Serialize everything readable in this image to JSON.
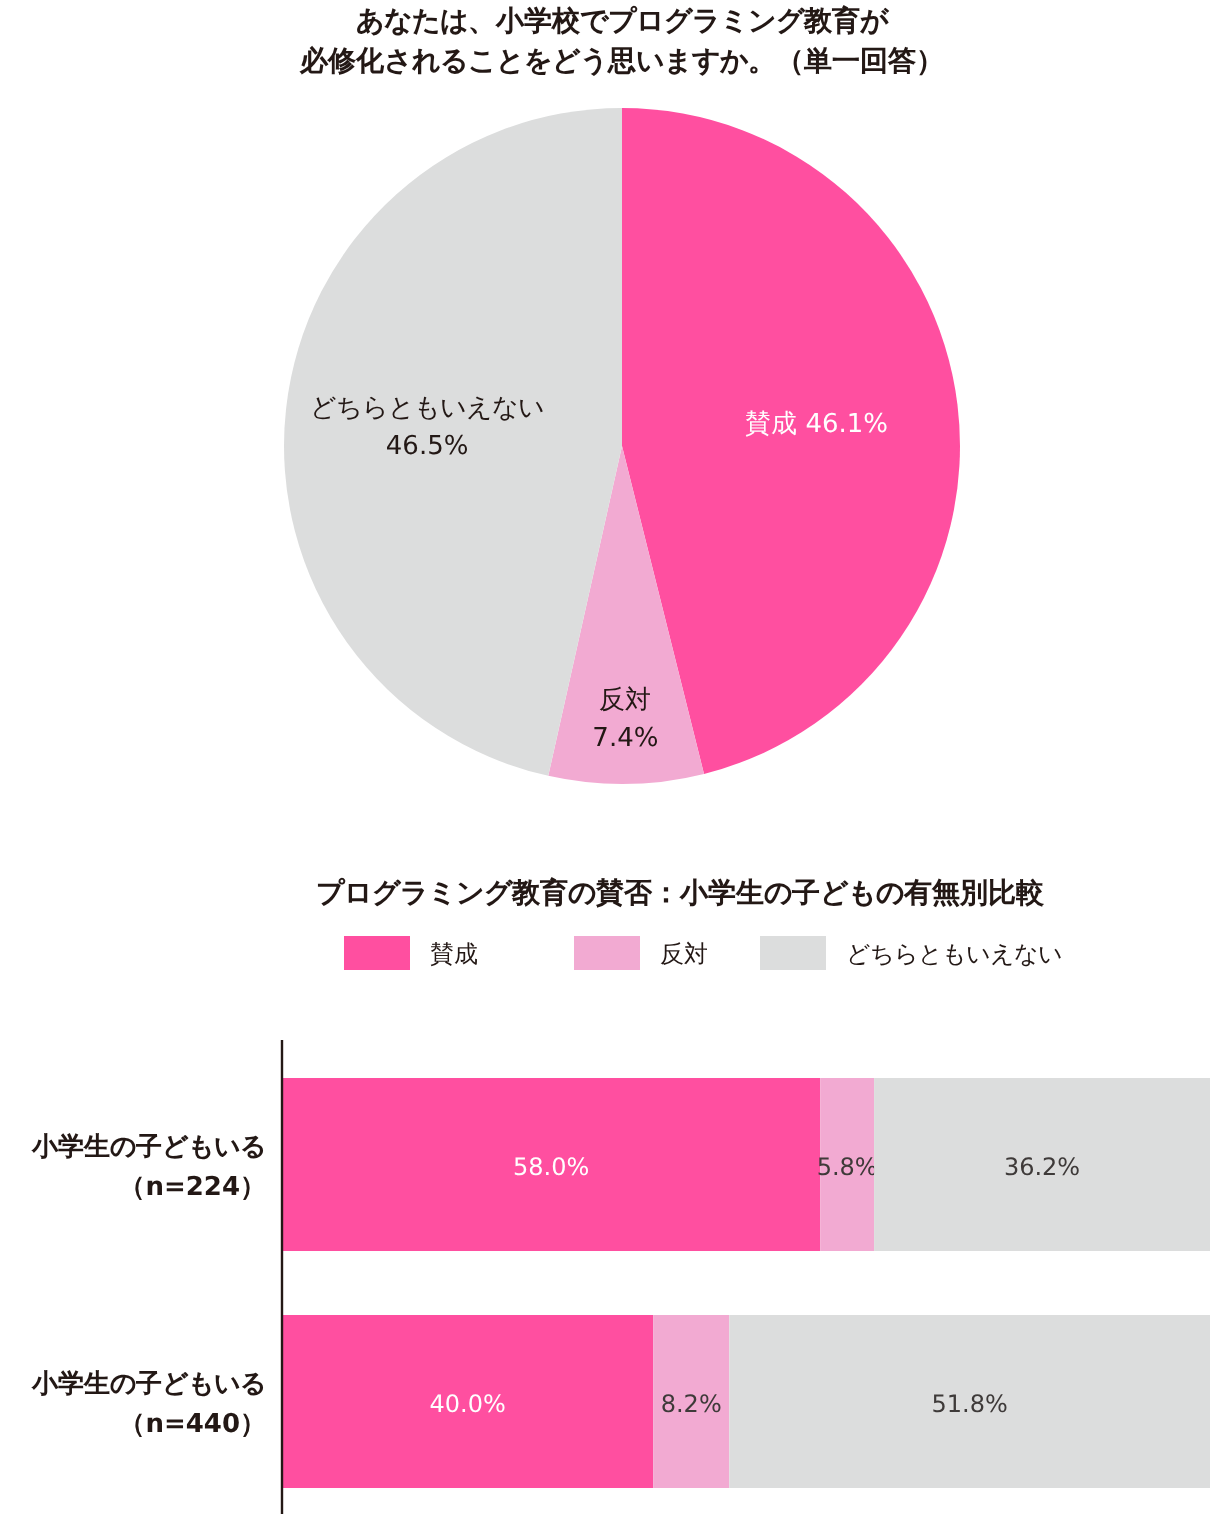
{
  "chart_data": [
    {
      "type": "pie",
      "title": "あなたは、小学校でプログラミング教育が必修化されることをどう思いますか。（単一回答）",
      "categories": [
        "賛成",
        "反対",
        "どちらともいえない"
      ],
      "values": [
        46.1,
        7.4,
        46.5
      ],
      "value_labels": [
        "46.1%",
        "7.4%",
        "46.5%"
      ],
      "colors": [
        "#ff4fa0",
        "#f2aad2",
        "#dcdddd"
      ]
    },
    {
      "type": "bar",
      "orientation": "horizontal",
      "stacked": true,
      "legend": "top",
      "title": "プログラミング教育の賛否：小学生の子どもの有無別比較",
      "categories": [
        "小学生の子どもいる（n=224）",
        "小学生の子どもいる（n=440）"
      ],
      "series": [
        {
          "name": "賛成",
          "color": "#ff4fa0",
          "values": [
            58.0,
            40.0
          ],
          "value_labels": [
            "58.0%",
            "40.0%"
          ]
        },
        {
          "name": "反対",
          "color": "#f2aad2",
          "values": [
            5.8,
            8.2
          ],
          "value_labels": [
            "5.8%",
            "8.2%"
          ]
        },
        {
          "name": "どちらともいえない",
          "color": "#dcdddd",
          "values": [
            36.2,
            51.8
          ],
          "value_labels": [
            "36.2%",
            "51.8%"
          ]
        }
      ]
    }
  ]
}
